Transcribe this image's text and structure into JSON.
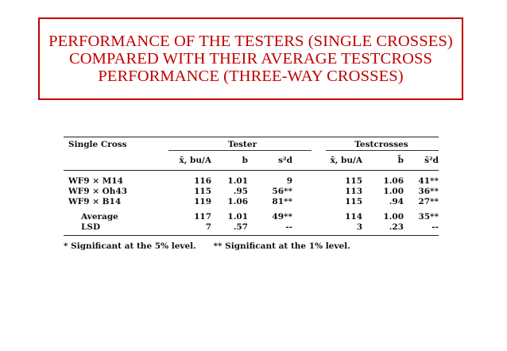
{
  "slide": {
    "title_lines": [
      "PERFORMANCE OF THE TESTERS (SINGLE CROSSES)",
      "COMPARED WITH THEIR AVERAGE TESTCROSS",
      "PERFORMANCE (THREE-WAY CROSSES)"
    ],
    "accent_color": "#c00000"
  },
  "table": {
    "header": {
      "single_cross": "Single Cross",
      "group_tester": "Tester",
      "group_testcrosses": "Testcrosses",
      "columns": [
        "x̄, bu/A",
        "b",
        "s²d",
        "x̄, bu/A",
        "b̄",
        "s̄²d"
      ]
    },
    "rows": [
      {
        "name": "WF9 × M14",
        "cells": [
          "116",
          "1.01",
          "9",
          "115",
          "1.06",
          "41**"
        ]
      },
      {
        "name": "WF9 × Oh43",
        "cells": [
          "115",
          ".95",
          "56**",
          "113",
          "1.00",
          "36**"
        ]
      },
      {
        "name": "WF9 × B14",
        "cells": [
          "119",
          "1.06",
          "81**",
          "115",
          ".94",
          "27**"
        ]
      }
    ],
    "summary": [
      {
        "name": "Average",
        "cells": [
          "117",
          "1.01",
          "49**",
          "114",
          "1.00",
          "35**"
        ]
      },
      {
        "name": "LSD",
        "cells": [
          "7",
          ".57",
          "--",
          "3",
          ".23",
          "--"
        ]
      }
    ],
    "footnotes": [
      "* Significant at the 5% level.",
      "** Significant at the 1% level."
    ]
  }
}
